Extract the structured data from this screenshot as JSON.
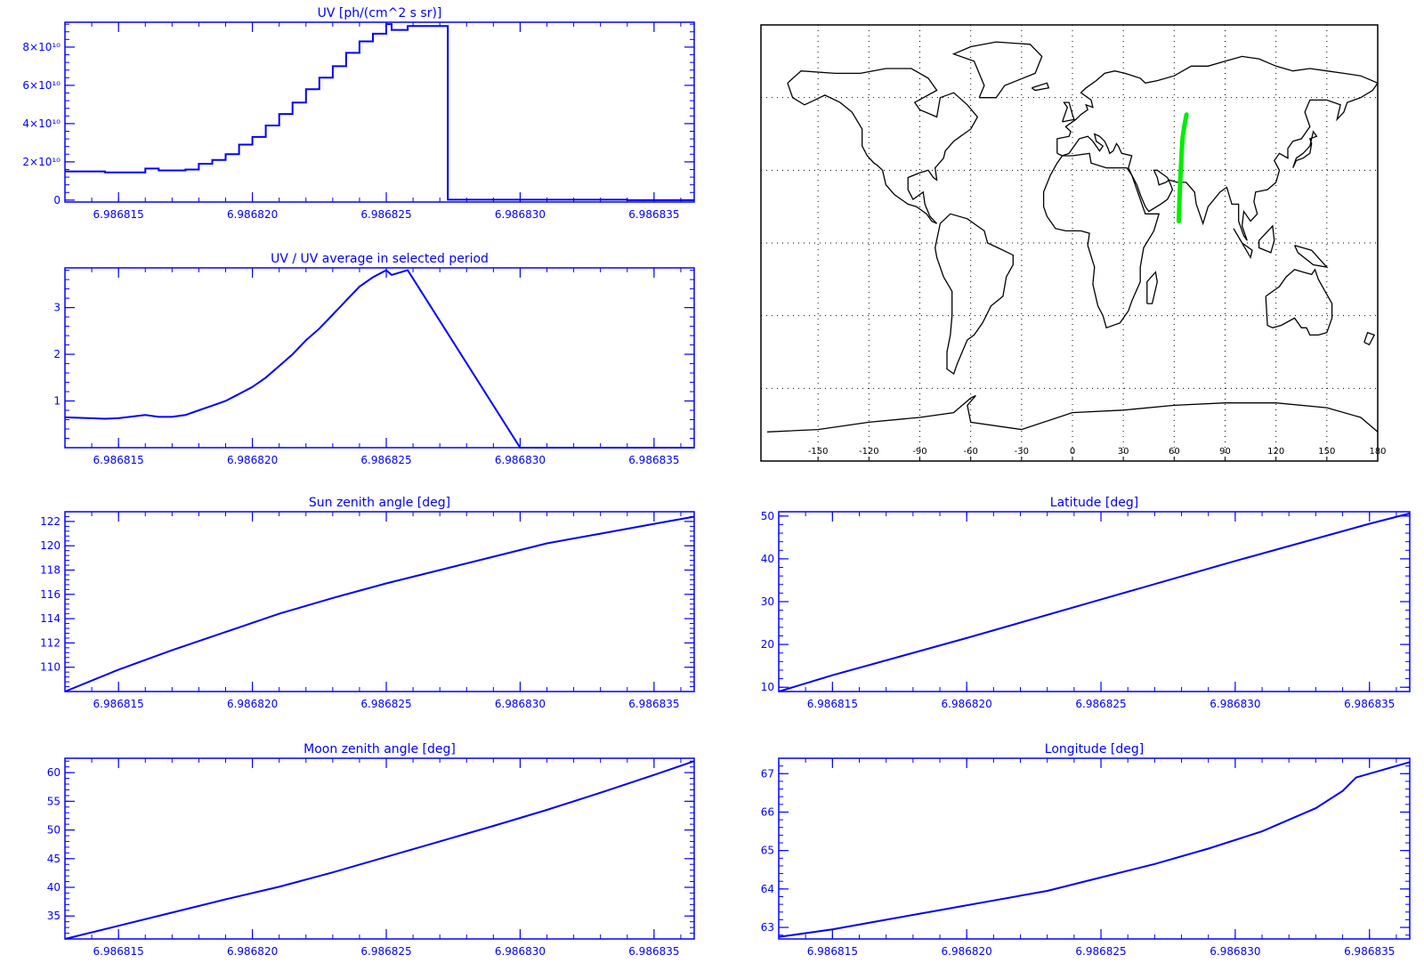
{
  "colors": {
    "axis": "#0000ff",
    "trace": "#0000ff",
    "map_line": "#000000",
    "track": "#00ee00",
    "grid": "#000000"
  },
  "chart_data": [
    {
      "id": "uv",
      "type": "line",
      "title": "UV [ph/(cm^2 s sr)]",
      "step": true,
      "xlim": [
        6.986813,
        6.9868365
      ],
      "ylim": [
        -1000000000.0,
        93000000000.0
      ],
      "xticks": [
        6.986815,
        6.98682,
        6.986825,
        6.98683,
        6.986835
      ],
      "xtick_labels": [
        "6.986815",
        "6.986820",
        "6.986825",
        "6.986830",
        "6.986835"
      ],
      "yticks": [
        0,
        20000000000.0,
        40000000000.0,
        60000000000.0,
        80000000000.0
      ],
      "ytick_labels": [
        "0",
        "2×10¹⁰",
        "4×10¹⁰",
        "6×10¹⁰",
        "8×10¹⁰"
      ],
      "series": [
        {
          "x": [
            6.986813,
            6.9868145,
            6.986815,
            6.986816,
            6.9868165,
            6.986817,
            6.9868175,
            6.986818,
            6.9868185,
            6.986819,
            6.9868195,
            6.98682,
            6.9868205,
            6.986821,
            6.9868215,
            6.986822,
            6.9868225,
            6.986823,
            6.9868235,
            6.986824,
            6.9868245,
            6.986825,
            6.9868252,
            6.9868258,
            6.986826,
            6.9868272,
            6.9868273,
            6.98683,
            6.986834,
            6.9868365
          ],
          "y": [
            15000000000.0,
            14500000000.0,
            14500000000.0,
            16500000000.0,
            15500000000.0,
            15500000000.0,
            16000000000.0,
            19000000000.0,
            21000000000.0,
            24000000000.0,
            29000000000.0,
            33000000000.0,
            39000000000.0,
            45000000000.0,
            51000000000.0,
            58000000000.0,
            64000000000.0,
            70000000000.0,
            77000000000.0,
            83000000000.0,
            87000000000.0,
            92000000000.0,
            89000000000.0,
            91000000000.0,
            91000000000.0,
            91000000000.0,
            200000000.0,
            200000000.0,
            0.0,
            0.0
          ]
        }
      ]
    },
    {
      "id": "ratio",
      "type": "line",
      "title": "UV / UV average in selected period",
      "step": false,
      "xlim": [
        6.986813,
        6.9868365
      ],
      "ylim": [
        0.0,
        3.85
      ],
      "xticks": [
        6.986815,
        6.98682,
        6.986825,
        6.98683,
        6.986835
      ],
      "xtick_labels": [
        "6.986815",
        "6.986820",
        "6.986825",
        "6.986830",
        "6.986835"
      ],
      "yticks": [
        1,
        2,
        3
      ],
      "ytick_labels": [
        "1",
        "2",
        "3"
      ],
      "series": [
        {
          "x": [
            6.986813,
            6.9868145,
            6.986815,
            6.986816,
            6.9868165,
            6.986817,
            6.9868175,
            6.986818,
            6.9868185,
            6.986819,
            6.9868195,
            6.98682,
            6.9868205,
            6.986821,
            6.9868215,
            6.986822,
            6.9868225,
            6.986823,
            6.9868235,
            6.986824,
            6.9868245,
            6.986825,
            6.9868252,
            6.9868258,
            6.98683,
            6.9868365
          ],
          "y": [
            0.65,
            0.62,
            0.63,
            0.7,
            0.66,
            0.66,
            0.7,
            0.8,
            0.9,
            1.0,
            1.15,
            1.3,
            1.5,
            1.75,
            2.0,
            2.3,
            2.55,
            2.85,
            3.15,
            3.45,
            3.65,
            3.8,
            3.7,
            3.8,
            0.0,
            0.0
          ]
        }
      ]
    },
    {
      "id": "sun",
      "type": "line",
      "title": "Sun zenith angle [deg]",
      "step": false,
      "xlim": [
        6.986813,
        6.9868365
      ],
      "ylim": [
        108.0,
        122.8
      ],
      "xticks": [
        6.986815,
        6.98682,
        6.986825,
        6.98683,
        6.986835
      ],
      "xtick_labels": [
        "6.986815",
        "6.986820",
        "6.986825",
        "6.986830",
        "6.986835"
      ],
      "yticks": [
        110,
        112,
        114,
        116,
        118,
        120,
        122
      ],
      "ytick_labels": [
        "110",
        "112",
        "114",
        "116",
        "118",
        "120",
        "122"
      ],
      "series": [
        {
          "x": [
            6.986813,
            6.986815,
            6.986817,
            6.986819,
            6.986821,
            6.986823,
            6.986825,
            6.986827,
            6.986829,
            6.986831,
            6.986833,
            6.986835,
            6.9868365
          ],
          "y": [
            108.0,
            109.8,
            111.4,
            112.9,
            114.4,
            115.7,
            116.9,
            118.0,
            119.1,
            120.2,
            121.0,
            121.8,
            122.4
          ]
        }
      ]
    },
    {
      "id": "lat",
      "type": "line",
      "title": "Latitude [deg]",
      "step": false,
      "xlim": [
        6.986813,
        6.9868365
      ],
      "ylim": [
        9.0,
        51.0
      ],
      "xticks": [
        6.986815,
        6.98682,
        6.986825,
        6.98683,
        6.986835
      ],
      "xtick_labels": [
        "6.986815",
        "6.986820",
        "6.986825",
        "6.986830",
        "6.986835"
      ],
      "yticks": [
        10,
        20,
        30,
        40,
        50
      ],
      "ytick_labels": [
        "10",
        "20",
        "30",
        "40",
        "50"
      ],
      "series": [
        {
          "x": [
            6.986813,
            6.986815,
            6.98682,
            6.986825,
            6.98683,
            6.986835,
            6.9868365
          ],
          "y": [
            9.0,
            12.8,
            21.5,
            30.5,
            39.5,
            48.2,
            50.6
          ]
        }
      ]
    },
    {
      "id": "moon",
      "type": "line",
      "title": "Moon zenith angle [deg]",
      "step": false,
      "xlim": [
        6.986813,
        6.9868365
      ],
      "ylim": [
        31.0,
        62.5
      ],
      "xticks": [
        6.986815,
        6.98682,
        6.986825,
        6.98683,
        6.986835
      ],
      "xtick_labels": [
        "6.986815",
        "6.986820",
        "6.986825",
        "6.986830",
        "6.986835"
      ],
      "yticks": [
        35,
        40,
        45,
        50,
        55,
        60
      ],
      "ytick_labels": [
        "35",
        "40",
        "45",
        "50",
        "55",
        "60"
      ],
      "series": [
        {
          "x": [
            6.986813,
            6.986815,
            6.986817,
            6.986819,
            6.986821,
            6.986823,
            6.986825,
            6.986827,
            6.986829,
            6.986831,
            6.986833,
            6.986835,
            6.9868365
          ],
          "y": [
            31.0,
            33.3,
            35.6,
            37.9,
            40.1,
            42.6,
            45.3,
            48.0,
            50.7,
            53.5,
            56.5,
            59.6,
            62.0
          ]
        }
      ]
    },
    {
      "id": "lon",
      "type": "line",
      "title": "Longitude [deg]",
      "step": false,
      "xlim": [
        6.986813,
        6.9868365
      ],
      "ylim": [
        62.7,
        67.4
      ],
      "xticks": [
        6.986815,
        6.98682,
        6.986825,
        6.98683,
        6.986835
      ],
      "xtick_labels": [
        "6.986815",
        "6.986820",
        "6.986825",
        "6.986830",
        "6.986835"
      ],
      "yticks": [
        63,
        64,
        65,
        66,
        67
      ],
      "ytick_labels": [
        "63",
        "64",
        "65",
        "66",
        "67"
      ],
      "series": [
        {
          "x": [
            6.986813,
            6.986815,
            6.986817,
            6.986819,
            6.986821,
            6.986823,
            6.986825,
            6.986827,
            6.986829,
            6.986831,
            6.986833,
            6.986834,
            6.9868345,
            6.9868365
          ],
          "y": [
            62.75,
            62.95,
            63.2,
            63.45,
            63.7,
            63.95,
            64.3,
            64.65,
            65.05,
            65.5,
            66.1,
            66.55,
            66.9,
            67.3
          ]
        }
      ]
    }
  ],
  "map": {
    "xlim": [
      -180,
      180
    ],
    "ylim": [
      -90,
      90
    ],
    "xticks": [
      -150,
      -120,
      -90,
      -60,
      -30,
      0,
      30,
      60,
      90,
      120,
      150,
      180
    ],
    "xtick_labels": [
      "-150",
      "-120",
      "-90",
      "-60",
      "-30",
      "0",
      "30",
      "60",
      "90",
      "120",
      "150",
      "180"
    ],
    "grid_lon": [
      -150,
      -120,
      -90,
      -60,
      -30,
      0,
      30,
      60,
      90,
      120,
      150
    ],
    "grid_lat": [
      -60,
      -30,
      0,
      30,
      60
    ],
    "track": [
      {
        "lon": [
          62.7,
          63.1,
          63.5,
          64.0,
          64.6,
          65.0
        ],
        "lat": [
          9,
          17,
          25,
          32,
          40,
          44
        ]
      },
      {
        "lon": [
          65.3,
          65.7,
          66.2,
          66.7,
          67.3
        ],
        "lat": [
          45,
          47,
          49,
          51,
          53
        ]
      }
    ]
  }
}
